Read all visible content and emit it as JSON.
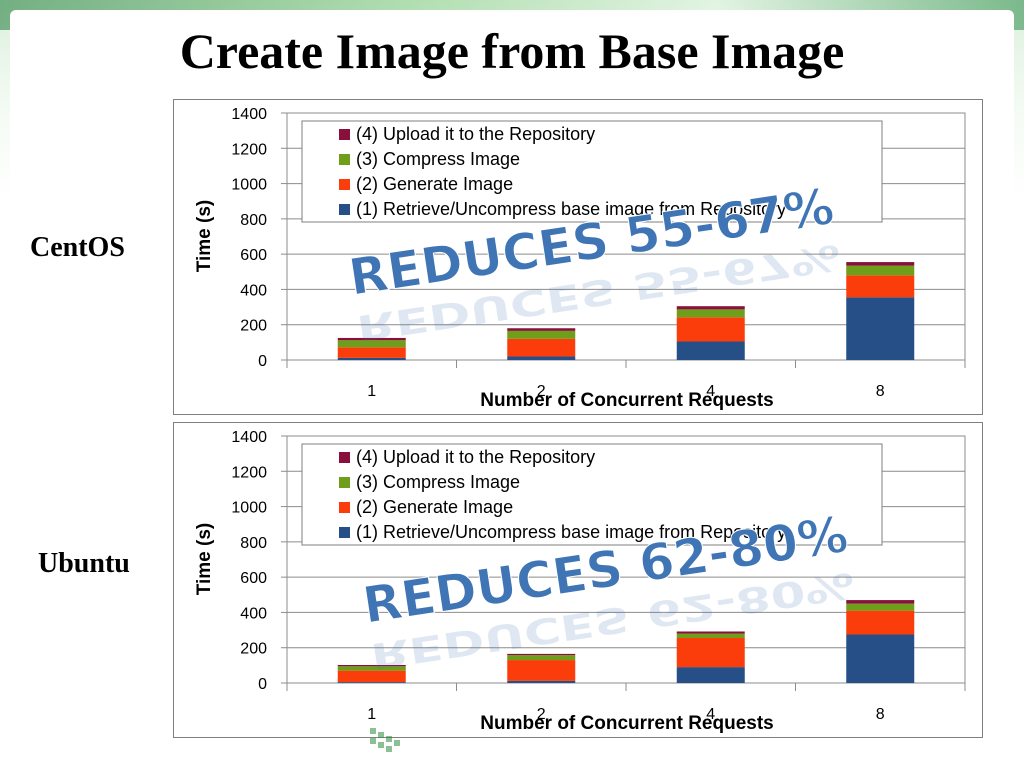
{
  "slide": {
    "title": "Create Image from Base Image"
  },
  "colors": {
    "retrieve": "#254f86",
    "generate": "#fb3d0b",
    "compress": "#6e9e1a",
    "upload": "#8a103c",
    "callout": "#3f74b5"
  },
  "chart_data": [
    {
      "type": "bar",
      "stacked": true,
      "os_label": "CentOS",
      "xlabel": "Number of Concurrent Requests",
      "ylabel": "Time (s)",
      "ylim": [
        0,
        1400
      ],
      "yticks": [
        "0",
        "200",
        "400",
        "600",
        "800",
        "1000",
        "1200",
        "1400"
      ],
      "categories": [
        "1",
        "2",
        "4",
        "8"
      ],
      "grid": true,
      "legend_position": "top",
      "series": [
        {
          "name": "(1) Retrieve/Uncompress base image from Repository",
          "values": [
            12,
            20,
            105,
            355
          ]
        },
        {
          "name": "(2) Generate Image",
          "values": [
            60,
            100,
            137,
            125
          ]
        },
        {
          "name": "(3) Compress Image",
          "values": [
            40,
            45,
            45,
            55
          ]
        },
        {
          "name": "(4) Upload it to the Repository",
          "values": [
            13,
            15,
            18,
            20
          ]
        }
      ],
      "annotation": "REDUCES 55-67%"
    },
    {
      "type": "bar",
      "stacked": true,
      "os_label": "Ubuntu",
      "xlabel": "Number of Concurrent Requests",
      "ylabel": "Time (s)",
      "ylim": [
        0,
        1400
      ],
      "yticks": [
        "0",
        "200",
        "400",
        "600",
        "800",
        "1000",
        "1200",
        "1400"
      ],
      "categories": [
        "1",
        "2",
        "4",
        "8"
      ],
      "grid": true,
      "legend_position": "top",
      "series": [
        {
          "name": "(1) Retrieve/Uncompress base image from Repository",
          "values": [
            5,
            12,
            90,
            275
          ]
        },
        {
          "name": "(2) Generate Image",
          "values": [
            65,
            118,
            165,
            135
          ]
        },
        {
          "name": "(3) Compress Image",
          "values": [
            25,
            28,
            25,
            40
          ]
        },
        {
          "name": "(4) Upload it to the Repository",
          "values": [
            7,
            7,
            12,
            20
          ]
        }
      ],
      "annotation": "REDUCES 62-80%"
    }
  ]
}
